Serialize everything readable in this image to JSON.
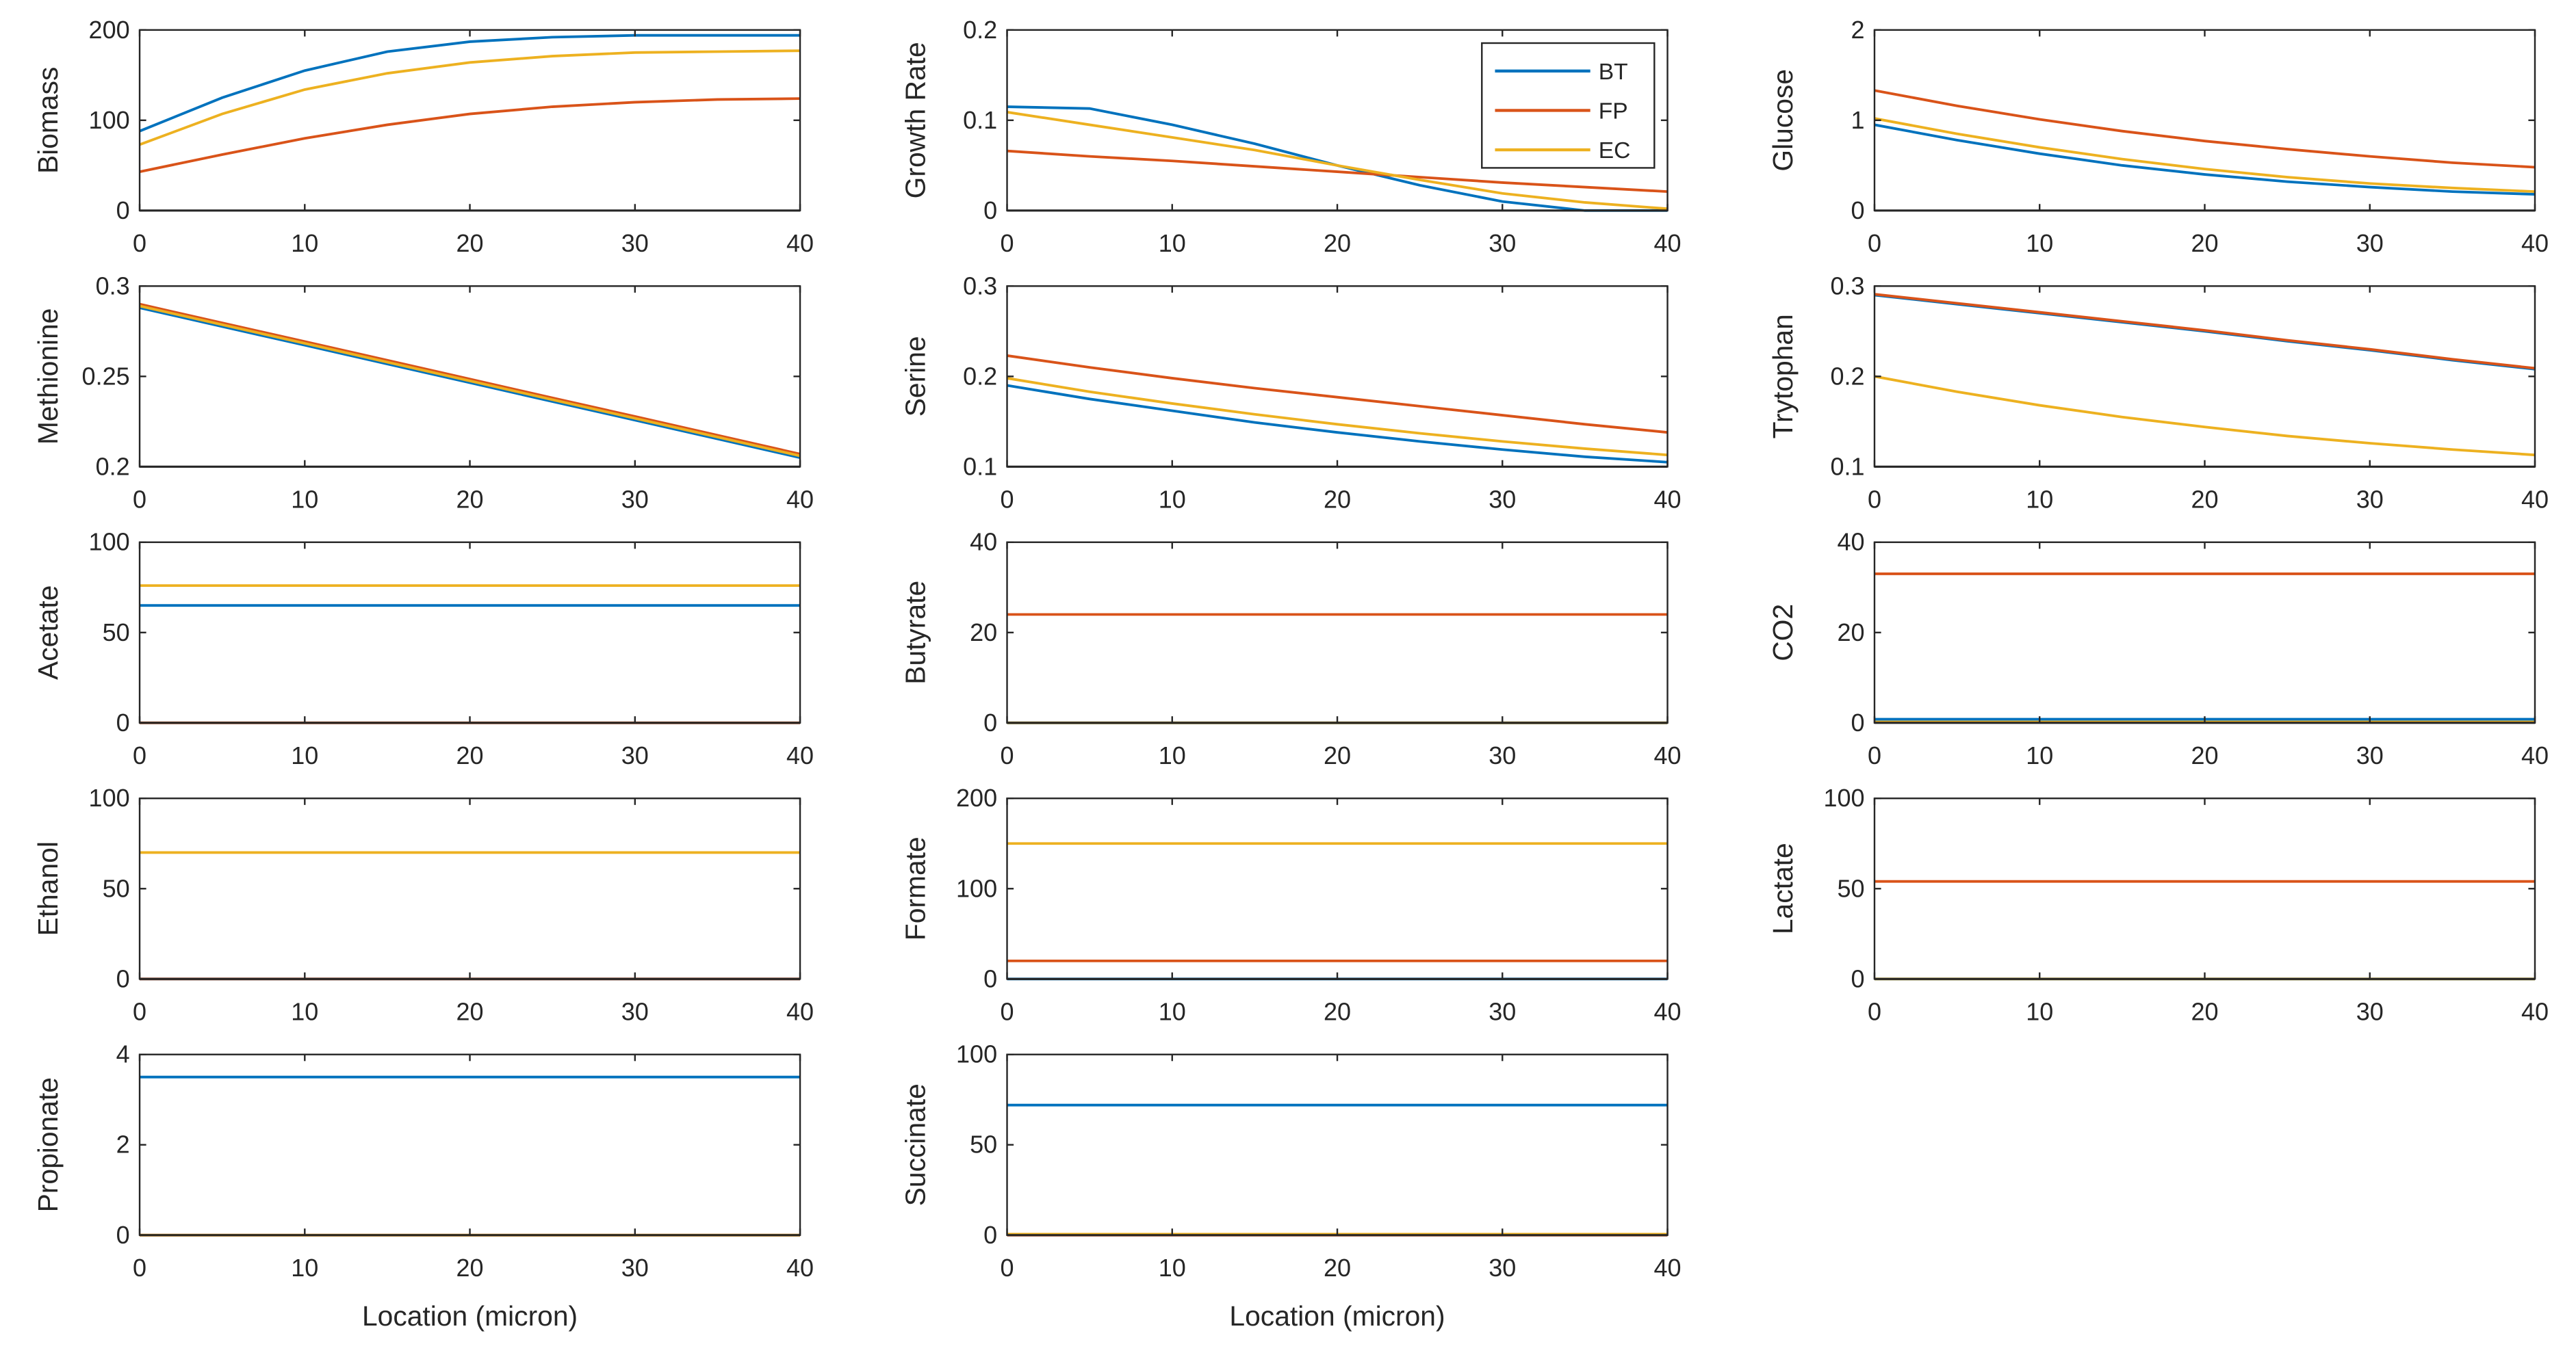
{
  "chart_data": [
    {
      "type": "line",
      "ylabel": "Biomass",
      "xlabel": "",
      "ylim": [
        0,
        200
      ],
      "yticks": [
        0,
        100,
        200
      ],
      "xlim": [
        0,
        40
      ],
      "xticks": [
        0,
        10,
        20,
        30,
        40
      ],
      "x": [
        0,
        5,
        10,
        15,
        20,
        25,
        30,
        35,
        40
      ],
      "series": [
        {
          "name": "BT",
          "values": [
            88,
            125,
            155,
            176,
            187,
            192,
            194,
            194,
            194
          ]
        },
        {
          "name": "FP",
          "values": [
            43,
            62,
            80,
            95,
            107,
            115,
            120,
            123,
            124
          ]
        },
        {
          "name": "EC",
          "values": [
            73,
            107,
            134,
            152,
            164,
            171,
            175,
            176,
            177
          ]
        }
      ]
    },
    {
      "type": "line",
      "ylabel": "Growth Rate",
      "xlabel": "",
      "ylim": [
        0,
        0.2
      ],
      "yticks": [
        0,
        0.1,
        0.2
      ],
      "xlim": [
        0,
        40
      ],
      "xticks": [
        0,
        10,
        20,
        30,
        40
      ],
      "x": [
        0,
        5,
        10,
        15,
        20,
        25,
        30,
        35,
        40
      ],
      "legend": {
        "placement": "top-right",
        "entries": [
          "BT",
          "FP",
          "EC"
        ]
      },
      "series": [
        {
          "name": "BT",
          "values": [
            0.115,
            0.113,
            0.095,
            0.074,
            0.05,
            0.028,
            0.01,
            0.0,
            0.0
          ]
        },
        {
          "name": "FP",
          "values": [
            0.066,
            0.06,
            0.055,
            0.049,
            0.043,
            0.037,
            0.031,
            0.026,
            0.021
          ]
        },
        {
          "name": "EC",
          "values": [
            0.109,
            0.095,
            0.081,
            0.067,
            0.05,
            0.034,
            0.019,
            0.009,
            0.002
          ]
        }
      ]
    },
    {
      "type": "line",
      "ylabel": "Glucose",
      "xlabel": "",
      "ylim": [
        0,
        2
      ],
      "yticks": [
        0,
        1,
        2
      ],
      "xlim": [
        0,
        40
      ],
      "xticks": [
        0,
        10,
        20,
        30,
        40
      ],
      "x": [
        0,
        5,
        10,
        15,
        20,
        25,
        30,
        35,
        40
      ],
      "series": [
        {
          "name": "BT",
          "values": [
            0.95,
            0.78,
            0.63,
            0.5,
            0.4,
            0.32,
            0.26,
            0.21,
            0.18
          ]
        },
        {
          "name": "FP",
          "values": [
            1.33,
            1.16,
            1.01,
            0.88,
            0.77,
            0.68,
            0.6,
            0.53,
            0.48
          ]
        },
        {
          "name": "EC",
          "values": [
            1.02,
            0.85,
            0.7,
            0.57,
            0.46,
            0.37,
            0.3,
            0.25,
            0.21
          ]
        }
      ]
    },
    {
      "type": "line",
      "ylabel": "Methionine",
      "xlabel": "",
      "ylim": [
        0.2,
        0.3
      ],
      "yticks": [
        0.2,
        0.25,
        0.3
      ],
      "xlim": [
        0,
        40
      ],
      "xticks": [
        0,
        10,
        20,
        30,
        40
      ],
      "x": [
        0,
        5,
        10,
        15,
        20,
        25,
        30,
        35,
        40
      ],
      "series": [
        {
          "name": "BT",
          "values": [
            0.288,
            0.2776,
            0.2673,
            0.2569,
            0.2465,
            0.2361,
            0.2258,
            0.2154,
            0.205
          ]
        },
        {
          "name": "FP",
          "values": [
            0.29,
            0.2796,
            0.2693,
            0.2589,
            0.2485,
            0.2381,
            0.2278,
            0.2174,
            0.207
          ]
        },
        {
          "name": "EC",
          "values": [
            0.289,
            0.2786,
            0.2683,
            0.2579,
            0.2475,
            0.2371,
            0.2268,
            0.2164,
            0.206
          ]
        }
      ]
    },
    {
      "type": "line",
      "ylabel": "Serine",
      "xlabel": "",
      "ylim": [
        0.1,
        0.3
      ],
      "yticks": [
        0.1,
        0.2,
        0.3
      ],
      "xlim": [
        0,
        40
      ],
      "xticks": [
        0,
        10,
        20,
        30,
        40
      ],
      "x": [
        0,
        5,
        10,
        15,
        20,
        25,
        30,
        35,
        40
      ],
      "series": [
        {
          "name": "BT",
          "values": [
            0.19,
            0.175,
            0.162,
            0.149,
            0.138,
            0.128,
            0.119,
            0.111,
            0.105
          ]
        },
        {
          "name": "FP",
          "values": [
            0.223,
            0.21,
            0.198,
            0.187,
            0.177,
            0.167,
            0.157,
            0.147,
            0.138
          ]
        },
        {
          "name": "EC",
          "values": [
            0.198,
            0.183,
            0.17,
            0.158,
            0.147,
            0.137,
            0.128,
            0.12,
            0.113
          ]
        }
      ]
    },
    {
      "type": "line",
      "ylabel": "Trytophan",
      "xlabel": "",
      "ylim": [
        0.1,
        0.3
      ],
      "yticks": [
        0.1,
        0.2,
        0.3
      ],
      "xlim": [
        0,
        40
      ],
      "xticks": [
        0,
        10,
        20,
        30,
        40
      ],
      "x": [
        0,
        5,
        10,
        15,
        20,
        25,
        30,
        35,
        40
      ],
      "series": [
        {
          "name": "BT",
          "values": [
            0.29,
            0.28,
            0.27,
            0.26,
            0.25,
            0.239,
            0.229,
            0.218,
            0.208
          ]
        },
        {
          "name": "FP",
          "values": [
            0.291,
            0.281,
            0.271,
            0.261,
            0.251,
            0.24,
            0.23,
            0.219,
            0.209
          ]
        },
        {
          "name": "EC",
          "values": [
            0.2,
            0.183,
            0.168,
            0.155,
            0.144,
            0.134,
            0.126,
            0.119,
            0.113
          ]
        }
      ]
    },
    {
      "type": "line",
      "ylabel": "Acetate",
      "xlabel": "",
      "ylim": [
        0,
        100
      ],
      "yticks": [
        0,
        50,
        100
      ],
      "xlim": [
        0,
        40
      ],
      "xticks": [
        0,
        10,
        20,
        30,
        40
      ],
      "x": [
        0,
        40
      ],
      "series": [
        {
          "name": "BT",
          "values": [
            65,
            65
          ]
        },
        {
          "name": "FP",
          "values": [
            0,
            0
          ]
        },
        {
          "name": "EC",
          "values": [
            76,
            76
          ]
        }
      ]
    },
    {
      "type": "line",
      "ylabel": "Butyrate",
      "xlabel": "",
      "ylim": [
        0,
        40
      ],
      "yticks": [
        0,
        20,
        40
      ],
      "xlim": [
        0,
        40
      ],
      "xticks": [
        0,
        10,
        20,
        30,
        40
      ],
      "x": [
        0,
        40
      ],
      "series": [
        {
          "name": "BT",
          "values": [
            0,
            0
          ]
        },
        {
          "name": "FP",
          "values": [
            24,
            24
          ]
        },
        {
          "name": "EC",
          "values": [
            0,
            0
          ]
        }
      ]
    },
    {
      "type": "line",
      "ylabel": "CO2",
      "xlabel": "",
      "ylim": [
        0,
        40
      ],
      "yticks": [
        0,
        20,
        40
      ],
      "xlim": [
        0,
        40
      ],
      "xticks": [
        0,
        10,
        20,
        30,
        40
      ],
      "x": [
        0,
        40
      ],
      "series": [
        {
          "name": "BT",
          "values": [
            0.8,
            0.8
          ]
        },
        {
          "name": "FP",
          "values": [
            33,
            33
          ]
        },
        {
          "name": "EC",
          "values": [
            0.2,
            0.2
          ]
        }
      ]
    },
    {
      "type": "line",
      "ylabel": "Ethanol",
      "xlabel": "",
      "ylim": [
        0,
        100
      ],
      "yticks": [
        0,
        50,
        100
      ],
      "xlim": [
        0,
        40
      ],
      "xticks": [
        0,
        10,
        20,
        30,
        40
      ],
      "x": [
        0,
        40
      ],
      "series": [
        {
          "name": "BT",
          "values": [
            0,
            0
          ]
        },
        {
          "name": "EC",
          "values": [
            70,
            70
          ]
        },
        {
          "name": "FP",
          "values": [
            0,
            0
          ]
        }
      ]
    },
    {
      "type": "line",
      "ylabel": "Formate",
      "xlabel": "",
      "ylim": [
        0,
        200
      ],
      "yticks": [
        0,
        100,
        200
      ],
      "xlim": [
        0,
        40
      ],
      "xticks": [
        0,
        10,
        20,
        30,
        40
      ],
      "x": [
        0,
        40
      ],
      "series": [
        {
          "name": "BT",
          "values": [
            0,
            0
          ]
        },
        {
          "name": "FP",
          "values": [
            20,
            20
          ]
        },
        {
          "name": "EC",
          "values": [
            150,
            150
          ]
        }
      ]
    },
    {
      "type": "line",
      "ylabel": "Lactate",
      "xlabel": "",
      "ylim": [
        0,
        100
      ],
      "yticks": [
        0,
        50,
        100
      ],
      "xlim": [
        0,
        40
      ],
      "xticks": [
        0,
        10,
        20,
        30,
        40
      ],
      "x": [
        0,
        40
      ],
      "series": [
        {
          "name": "BT",
          "values": [
            0,
            0
          ]
        },
        {
          "name": "FP",
          "values": [
            54,
            54
          ]
        },
        {
          "name": "EC",
          "values": [
            0,
            0
          ]
        }
      ]
    },
    {
      "type": "line",
      "ylabel": "Propionate",
      "xlabel": "Location (micron)",
      "ylim": [
        0,
        4
      ],
      "yticks": [
        0,
        2,
        4
      ],
      "xlim": [
        0,
        40
      ],
      "xticks": [
        0,
        10,
        20,
        30,
        40
      ],
      "x": [
        0,
        40
      ],
      "series": [
        {
          "name": "BT",
          "values": [
            3.5,
            3.5
          ]
        },
        {
          "name": "FP",
          "values": [
            0,
            0
          ]
        },
        {
          "name": "EC",
          "values": [
            0,
            0
          ]
        }
      ]
    },
    {
      "type": "line",
      "ylabel": "Succinate",
      "xlabel": "Location (micron)",
      "ylim": [
        0,
        100
      ],
      "yticks": [
        0,
        50,
        100
      ],
      "xlim": [
        0,
        40
      ],
      "xticks": [
        0,
        10,
        20,
        30,
        40
      ],
      "x": [
        0,
        40
      ],
      "series": [
        {
          "name": "BT",
          "values": [
            72,
            72
          ]
        },
        {
          "name": "FP",
          "values": [
            0,
            0
          ]
        },
        {
          "name": "EC",
          "values": [
            0.5,
            0.5
          ]
        }
      ]
    }
  ],
  "colors": {
    "BT": "#0072BD",
    "FP": "#D95319",
    "EC": "#EDB120",
    "axis": "#262626"
  }
}
